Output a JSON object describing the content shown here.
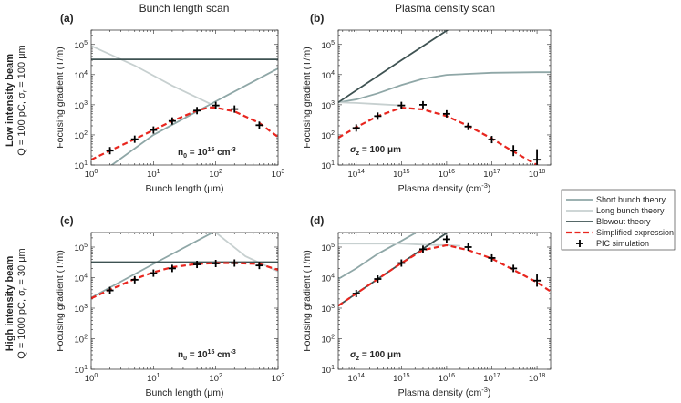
{
  "figure": {
    "col_titles": [
      "Bunch length scan",
      "Plasma density scan"
    ],
    "row_titles": [
      {
        "main": "Low intensity beam",
        "sub": "Q = 100 pC, σ",
        "sub_subscript": "r",
        "sub_tail": " = 100 μm"
      },
      {
        "main": "High intensity beam",
        "sub": "Q = 1000 pC, σ",
        "sub_subscript": "r",
        "sub_tail": " = 30 μm"
      }
    ],
    "legend": [
      {
        "label": "Short bunch theory",
        "color": "#8fa7a7",
        "style": "solid"
      },
      {
        "label": "Long bunch theory",
        "color": "#c7d0d0",
        "style": "solid"
      },
      {
        "label": "Blowout theory",
        "color": "#3e5252",
        "style": "solid"
      },
      {
        "label": "Simplified expression",
        "color": "#e8261f",
        "style": "dashed"
      },
      {
        "label": "PIC simulation",
        "color": "#000000",
        "style": "cross"
      }
    ]
  },
  "chart_data": [
    {
      "panel": "(a)",
      "type": "line",
      "xscale": "log",
      "yscale": "log",
      "xlim": [
        1,
        1000
      ],
      "ylim": [
        10,
        300000
      ],
      "xlabel": "Bunch length (μm)",
      "ylabel": "Focusing gradient (T/m)",
      "x_ticks": [
        1,
        10,
        100,
        1000
      ],
      "x_tick_labels": [
        "10^0",
        "10^1",
        "10^2",
        "10^3"
      ],
      "y_ticks": [
        10,
        100,
        1000,
        10000,
        100000
      ],
      "y_tick_labels": [
        "10^1",
        "10^2",
        "10^3",
        "10^4",
        "10^5"
      ],
      "annotation": {
        "base": "n",
        "sub": "0",
        "mid": " = 10",
        "sup": "15",
        "tail": " cm",
        "sup2": "-3"
      },
      "series": [
        {
          "name": "Short bunch theory",
          "points": [
            [
              1,
              3.2
            ],
            [
              10,
              100
            ],
            [
              100,
              1300
            ],
            [
              1000,
              16000
            ]
          ]
        },
        {
          "name": "Long bunch theory",
          "points": [
            [
              1,
              90000
            ],
            [
              5,
              20000
            ],
            [
              20,
              4300
            ],
            [
              80,
              1100
            ]
          ]
        },
        {
          "name": "Blowout theory",
          "points": [
            [
              1,
              32000
            ],
            [
              1000,
              32000
            ]
          ]
        },
        {
          "name": "Simplified expression",
          "points": [
            [
              1,
              15
            ],
            [
              2,
              30
            ],
            [
              5,
              72
            ],
            [
              10,
              145
            ],
            [
              20,
              290
            ],
            [
              50,
              640
            ],
            [
              80,
              820
            ],
            [
              100,
              800
            ],
            [
              200,
              600
            ],
            [
              500,
              250
            ],
            [
              1000,
              85
            ]
          ]
        },
        {
          "name": "PIC simulation",
          "points": [
            [
              2,
              30
            ],
            [
              5,
              72
            ],
            [
              10,
              145
            ],
            [
              20,
              290
            ],
            [
              50,
              640
            ],
            [
              100,
              950
            ],
            [
              200,
              720
            ],
            [
              500,
              210
            ]
          ],
          "err": [
            0.06,
            0.06,
            0.06,
            0.06,
            0.06,
            0.06,
            0.06,
            0.06
          ]
        }
      ]
    },
    {
      "panel": "(b)",
      "type": "line",
      "xscale": "log",
      "yscale": "log",
      "xlim": [
        40000000000000.0,
        2e+18
      ],
      "ylim": [
        10,
        300000
      ],
      "xlabel": "Plasma density (cm",
      "xlabel_sup": "-3",
      "xlabel_tail": ")",
      "ylabel": "Focusing gradient (T/m)",
      "x_ticks": [
        100000000000000.0,
        1000000000000000.0,
        1e+16,
        1e+17,
        1e+18
      ],
      "x_tick_labels": [
        "10^14",
        "10^15",
        "10^16",
        "10^17",
        "10^18"
      ],
      "y_ticks": [
        10,
        100,
        1000,
        10000,
        100000
      ],
      "y_tick_labels": [
        "10^1",
        "10^2",
        "10^3",
        "10^4",
        "10^5"
      ],
      "annotation": {
        "base": "σ",
        "sub": "z",
        "mid": " = 100 ",
        "unit": "μm"
      },
      "series": [
        {
          "name": "Short bunch theory",
          "points": [
            [
              40000000000000.0,
              1200
            ],
            [
              100000000000000.0,
              1500
            ],
            [
              300000000000000.0,
              2400
            ],
            [
              1000000000000000.0,
              4500
            ],
            [
              3000000000000000.0,
              7300
            ],
            [
              1e+16,
              9800
            ],
            [
              1e+17,
              11500
            ],
            [
              1e+18,
              12000
            ],
            [
              2e+18,
              12000
            ]
          ]
        },
        {
          "name": "Long bunch theory",
          "points": [
            [
              40000000000000.0,
              1200
            ],
            [
              100000000000000.0,
              1150
            ],
            [
              300000000000000.0,
              1050
            ],
            [
              1000000000000000.0,
              950
            ]
          ]
        },
        {
          "name": "Blowout theory",
          "points": [
            [
              40000000000000.0,
              1200
            ],
            [
              1000000000000000.0,
              30000
            ],
            [
              1.4e+16,
              400000
            ]
          ]
        },
        {
          "name": "Simplified expression",
          "points": [
            [
              40000000000000.0,
              80
            ],
            [
              100000000000000.0,
              180
            ],
            [
              300000000000000.0,
              420
            ],
            [
              1000000000000000.0,
              800
            ],
            [
              3000000000000000.0,
              700
            ],
            [
              1e+16,
              420
            ],
            [
              3e+16,
              200
            ],
            [
              1e+17,
              75
            ],
            [
              3e+17,
              28
            ],
            [
              1e+18,
              10
            ],
            [
              2e+18,
              5
            ]
          ]
        },
        {
          "name": "PIC simulation",
          "points": [
            [
              100000000000000.0,
              170
            ],
            [
              300000000000000.0,
              420
            ],
            [
              1000000000000000.0,
              950
            ],
            [
              3000000000000000.0,
              1000
            ],
            [
              1e+16,
              500
            ],
            [
              3e+16,
              190
            ],
            [
              1e+17,
              70
            ],
            [
              3e+17,
              30
            ],
            [
              1e+18,
              15
            ]
          ],
          "err": [
            0.05,
            0.05,
            0.05,
            0.05,
            0.05,
            0.06,
            0.08,
            0.18,
            0.35
          ]
        }
      ]
    },
    {
      "panel": "(c)",
      "type": "line",
      "xscale": "log",
      "yscale": "log",
      "xlim": [
        1,
        1000
      ],
      "ylim": [
        10,
        300000
      ],
      "xlabel": "Bunch length (μm)",
      "ylabel": "Focusing gradient (T/m)",
      "x_ticks": [
        1,
        10,
        100,
        1000
      ],
      "x_tick_labels": [
        "10^0",
        "10^1",
        "10^2",
        "10^3"
      ],
      "y_ticks": [
        10,
        100,
        1000,
        10000,
        100000
      ],
      "y_tick_labels": [
        "10^1",
        "10^2",
        "10^3",
        "10^4",
        "10^5"
      ],
      "annotation": {
        "base": "n",
        "sub": "0",
        "mid": " = 10",
        "sup": "15",
        "tail": " cm",
        "sup2": "-3"
      },
      "series": [
        {
          "name": "Short bunch theory",
          "points": [
            [
              1,
              2200
            ],
            [
              10,
              28000
            ],
            [
              100,
              340000
            ]
          ]
        },
        {
          "name": "Long bunch theory",
          "points": [
            [
              100,
              300000
            ],
            [
              300,
              50000
            ],
            [
              1000,
              16000
            ]
          ]
        },
        {
          "name": "Blowout theory",
          "points": [
            [
              1,
              32000
            ],
            [
              1000,
              32000
            ]
          ]
        },
        {
          "name": "Simplified expression",
          "points": [
            [
              1,
              2100
            ],
            [
              2,
              4000
            ],
            [
              5,
              9000
            ],
            [
              10,
              15000
            ],
            [
              20,
              22000
            ],
            [
              50,
              28000
            ],
            [
              100,
              30000
            ],
            [
              200,
              30000
            ],
            [
              500,
              28000
            ],
            [
              1000,
              18000
            ]
          ]
        },
        {
          "name": "PIC simulation",
          "points": [
            [
              2,
              3800
            ],
            [
              5,
              8500
            ],
            [
              10,
              14000
            ],
            [
              20,
              20000
            ],
            [
              50,
              27000
            ],
            [
              100,
              29000
            ],
            [
              200,
              30000
            ],
            [
              500,
              25000
            ]
          ],
          "err": [
            0.06,
            0.06,
            0.06,
            0.06,
            0.06,
            0.06,
            0.06,
            0.1
          ]
        }
      ]
    },
    {
      "panel": "(d)",
      "type": "line",
      "xscale": "log",
      "yscale": "log",
      "xlim": [
        40000000000000.0,
        2e+18
      ],
      "ylim": [
        10,
        300000
      ],
      "xlabel": "Plasma density (cm",
      "xlabel_sup": "-3",
      "xlabel_tail": ")",
      "ylabel": "Focusing gradient (T/m)",
      "x_ticks": [
        100000000000000.0,
        1000000000000000.0,
        1e+16,
        1e+17,
        1e+18
      ],
      "x_tick_labels": [
        "10^14",
        "10^15",
        "10^16",
        "10^17",
        "10^18"
      ],
      "y_ticks": [
        10,
        100,
        1000,
        10000,
        100000
      ],
      "y_tick_labels": [
        "10^1",
        "10^2",
        "10^3",
        "10^4",
        "10^5"
      ],
      "annotation": {
        "base": "σ",
        "sub": "z",
        "mid": " = 100 ",
        "unit": "μm"
      },
      "series": [
        {
          "name": "Short bunch theory",
          "points": [
            [
              40000000000000.0,
              9000
            ],
            [
              100000000000000.0,
              20000
            ],
            [
              300000000000000.0,
              60000
            ],
            [
              1000000000000000.0,
              160000
            ],
            [
              3000000000000000.0,
              400000
            ]
          ]
        },
        {
          "name": "Long bunch theory",
          "points": [
            [
              40000000000000.0,
              130000
            ],
            [
              1000000000000000.0,
              130000
            ],
            [
              3000000000000000.0,
              120000
            ],
            [
              1e+16,
              115000
            ],
            [
              2e+16,
              110000
            ]
          ]
        },
        {
          "name": "Blowout theory",
          "points": [
            [
              40000000000000.0,
              1200
            ],
            [
              1000000000000000.0,
              30000
            ],
            [
              1.4e+16,
              400000
            ]
          ]
        },
        {
          "name": "Simplified expression",
          "points": [
            [
              40000000000000.0,
              1200
            ],
            [
              100000000000000.0,
              3000
            ],
            [
              300000000000000.0,
              9000
            ],
            [
              1000000000000000.0,
              30000
            ],
            [
              3000000000000000.0,
              80000
            ],
            [
              1e+16,
              115000
            ],
            [
              3e+16,
              80000
            ],
            [
              1e+17,
              42000
            ],
            [
              3e+17,
              18000
            ],
            [
              1e+18,
              7000
            ],
            [
              2e+18,
              3500
            ]
          ]
        },
        {
          "name": "PIC simulation",
          "points": [
            [
              100000000000000.0,
              3000
            ],
            [
              300000000000000.0,
              9000
            ],
            [
              1000000000000000.0,
              30000
            ],
            [
              3000000000000000.0,
              85000
            ],
            [
              1e+16,
              180000
            ],
            [
              3e+16,
              100000
            ],
            [
              1e+17,
              44000
            ],
            [
              3e+17,
              20000
            ],
            [
              1e+18,
              8000
            ]
          ],
          "err": [
            0.05,
            0.05,
            0.05,
            0.05,
            0.05,
            0.05,
            0.06,
            0.08,
            0.2
          ]
        }
      ]
    }
  ]
}
